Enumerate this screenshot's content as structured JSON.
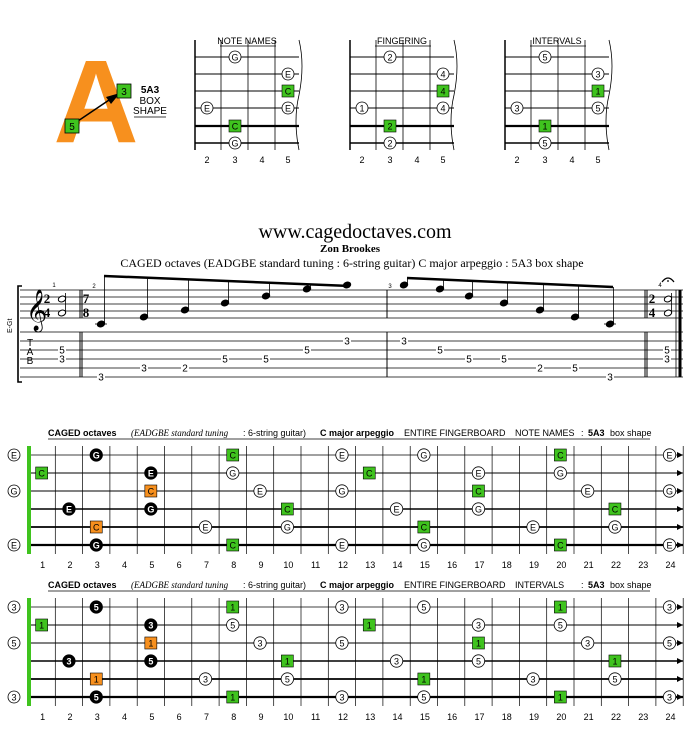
{
  "logo": {
    "letter": "A",
    "shape_lines": [
      "5A3",
      "BOX",
      "SHAPE"
    ],
    "root_label": "5",
    "third_label": "3",
    "letter_color": "#f7901e",
    "green": "#3fc31e"
  },
  "diagrams": [
    {
      "title": "NOTE NAMES",
      "labels": [
        "G",
        "E",
        "C",
        "E",
        "E",
        "C",
        "G"
      ]
    },
    {
      "title": "FINGERING",
      "labels": [
        "2",
        "4",
        "4",
        "1",
        "4",
        "2",
        "2"
      ]
    },
    {
      "title": "INTERVALS",
      "labels": [
        "5",
        "3",
        "1",
        "3",
        "5",
        "1",
        "5"
      ]
    }
  ],
  "diagram_fret_numbers": [
    "2",
    "3",
    "4",
    "5"
  ],
  "header": {
    "site": "www.cagedoctaves.com",
    "author": "Zon Brookes",
    "description": "CAGED octaves (EADGBE standard tuning : 6-string guitar) C major arpeggio : 5A3 box shape"
  },
  "score": {
    "staff_label": "E-Gt",
    "time1_top": "2",
    "time1_bottom": "4",
    "time2_top": "7",
    "time2_bottom": "8",
    "time3_top": "2",
    "time3_bottom": "4",
    "measure_numbers": [
      "1",
      "2",
      "3",
      "4"
    ],
    "tab_letters": [
      "T",
      "A",
      "B"
    ],
    "tab_m1": [
      "5",
      "3"
    ],
    "tab_m2": [
      "3",
      "3",
      "2",
      "5",
      "5",
      "5",
      "3"
    ],
    "tab_m3": [
      "3",
      "5",
      "5",
      "5",
      "2",
      "5",
      "3"
    ],
    "tab_m4": [
      "5",
      "3"
    ]
  },
  "fingerboard_notes": {
    "title_parts": [
      "CAGED octaves",
      "(EADGBE standard tuning",
      ": 6-string guitar)",
      "C major arpeggio",
      "ENTIRE FINGERBOARD",
      "NOTE NAMES",
      ":",
      "5A3",
      "box shape"
    ],
    "open_labels": [
      "E",
      "",
      "G",
      "",
      "",
      "E"
    ],
    "markers": [
      {
        "s": 1,
        "f": 3,
        "t": "G",
        "k": "black"
      },
      {
        "s": 1,
        "f": 8,
        "t": "C",
        "k": "green"
      },
      {
        "s": 1,
        "f": 12,
        "t": "E",
        "k": "white"
      },
      {
        "s": 1,
        "f": 15,
        "t": "G",
        "k": "white"
      },
      {
        "s": 1,
        "f": 20,
        "t": "C",
        "k": "green"
      },
      {
        "s": 1,
        "f": 24,
        "t": "E",
        "k": "white"
      },
      {
        "s": 2,
        "f": 1,
        "t": "C",
        "k": "green"
      },
      {
        "s": 2,
        "f": 5,
        "t": "E",
        "k": "black"
      },
      {
        "s": 2,
        "f": 8,
        "t": "G",
        "k": "white"
      },
      {
        "s": 2,
        "f": 13,
        "t": "C",
        "k": "green"
      },
      {
        "s": 2,
        "f": 17,
        "t": "E",
        "k": "white"
      },
      {
        "s": 2,
        "f": 20,
        "t": "G",
        "k": "white"
      },
      {
        "s": 3,
        "f": 5,
        "t": "C",
        "k": "orange"
      },
      {
        "s": 3,
        "f": 9,
        "t": "E",
        "k": "white"
      },
      {
        "s": 3,
        "f": 12,
        "t": "G",
        "k": "white"
      },
      {
        "s": 3,
        "f": 17,
        "t": "C",
        "k": "green"
      },
      {
        "s": 3,
        "f": 21,
        "t": "E",
        "k": "white"
      },
      {
        "s": 3,
        "f": 24,
        "t": "G",
        "k": "white"
      },
      {
        "s": 4,
        "f": 2,
        "t": "E",
        "k": "black"
      },
      {
        "s": 4,
        "f": 5,
        "t": "G",
        "k": "black"
      },
      {
        "s": 4,
        "f": 10,
        "t": "C",
        "k": "green"
      },
      {
        "s": 4,
        "f": 14,
        "t": "E",
        "k": "white"
      },
      {
        "s": 4,
        "f": 17,
        "t": "G",
        "k": "white"
      },
      {
        "s": 4,
        "f": 22,
        "t": "C",
        "k": "green"
      },
      {
        "s": 5,
        "f": 3,
        "t": "C",
        "k": "orange"
      },
      {
        "s": 5,
        "f": 7,
        "t": "E",
        "k": "white"
      },
      {
        "s": 5,
        "f": 10,
        "t": "G",
        "k": "white"
      },
      {
        "s": 5,
        "f": 15,
        "t": "C",
        "k": "green"
      },
      {
        "s": 5,
        "f": 19,
        "t": "E",
        "k": "white"
      },
      {
        "s": 5,
        "f": 22,
        "t": "G",
        "k": "white"
      },
      {
        "s": 6,
        "f": 3,
        "t": "G",
        "k": "black"
      },
      {
        "s": 6,
        "f": 8,
        "t": "C",
        "k": "green"
      },
      {
        "s": 6,
        "f": 12,
        "t": "E",
        "k": "white"
      },
      {
        "s": 6,
        "f": 15,
        "t": "G",
        "k": "white"
      },
      {
        "s": 6,
        "f": 20,
        "t": "C",
        "k": "green"
      },
      {
        "s": 6,
        "f": 24,
        "t": "E",
        "k": "white"
      }
    ]
  },
  "fingerboard_intervals": {
    "title_parts": [
      "CAGED octaves",
      "(EADGBE standard tuning",
      ": 6-string guitar)",
      "C major arpeggio",
      "ENTIRE FINGERBOARD",
      "INTERVALS",
      ":",
      "5A3",
      "box shape"
    ],
    "open_labels": [
      "3",
      "",
      "5",
      "",
      "",
      "3"
    ],
    "markers": [
      {
        "s": 1,
        "f": 3,
        "t": "5",
        "k": "black"
      },
      {
        "s": 1,
        "f": 8,
        "t": "1",
        "k": "green"
      },
      {
        "s": 1,
        "f": 12,
        "t": "3",
        "k": "white"
      },
      {
        "s": 1,
        "f": 15,
        "t": "5",
        "k": "white"
      },
      {
        "s": 1,
        "f": 20,
        "t": "1",
        "k": "green"
      },
      {
        "s": 1,
        "f": 24,
        "t": "3",
        "k": "white"
      },
      {
        "s": 2,
        "f": 1,
        "t": "1",
        "k": "green"
      },
      {
        "s": 2,
        "f": 5,
        "t": "3",
        "k": "black"
      },
      {
        "s": 2,
        "f": 8,
        "t": "5",
        "k": "white"
      },
      {
        "s": 2,
        "f": 13,
        "t": "1",
        "k": "green"
      },
      {
        "s": 2,
        "f": 17,
        "t": "3",
        "k": "white"
      },
      {
        "s": 2,
        "f": 20,
        "t": "5",
        "k": "white"
      },
      {
        "s": 3,
        "f": 5,
        "t": "1",
        "k": "orange"
      },
      {
        "s": 3,
        "f": 9,
        "t": "3",
        "k": "white"
      },
      {
        "s": 3,
        "f": 12,
        "t": "5",
        "k": "white"
      },
      {
        "s": 3,
        "f": 17,
        "t": "1",
        "k": "green"
      },
      {
        "s": 3,
        "f": 21,
        "t": "3",
        "k": "white"
      },
      {
        "s": 3,
        "f": 24,
        "t": "5",
        "k": "white"
      },
      {
        "s": 4,
        "f": 2,
        "t": "3",
        "k": "black"
      },
      {
        "s": 4,
        "f": 5,
        "t": "5",
        "k": "black"
      },
      {
        "s": 4,
        "f": 10,
        "t": "1",
        "k": "green"
      },
      {
        "s": 4,
        "f": 14,
        "t": "3",
        "k": "white"
      },
      {
        "s": 4,
        "f": 17,
        "t": "5",
        "k": "white"
      },
      {
        "s": 4,
        "f": 22,
        "t": "1",
        "k": "green"
      },
      {
        "s": 5,
        "f": 3,
        "t": "1",
        "k": "orange"
      },
      {
        "s": 5,
        "f": 7,
        "t": "3",
        "k": "white"
      },
      {
        "s": 5,
        "f": 10,
        "t": "5",
        "k": "white"
      },
      {
        "s": 5,
        "f": 15,
        "t": "1",
        "k": "green"
      },
      {
        "s": 5,
        "f": 19,
        "t": "3",
        "k": "white"
      },
      {
        "s": 5,
        "f": 22,
        "t": "5",
        "k": "white"
      },
      {
        "s": 6,
        "f": 3,
        "t": "5",
        "k": "black"
      },
      {
        "s": 6,
        "f": 8,
        "t": "1",
        "k": "green"
      },
      {
        "s": 6,
        "f": 12,
        "t": "3",
        "k": "white"
      },
      {
        "s": 6,
        "f": 15,
        "t": "5",
        "k": "white"
      },
      {
        "s": 6,
        "f": 20,
        "t": "1",
        "k": "green"
      },
      {
        "s": 6,
        "f": 24,
        "t": "3",
        "k": "white"
      }
    ]
  },
  "fret_numbers": [
    "1",
    "2",
    "3",
    "4",
    "5",
    "6",
    "7",
    "8",
    "9",
    "10",
    "11",
    "12",
    "13",
    "14",
    "15",
    "16",
    "17",
    "18",
    "19",
    "20",
    "21",
    "22",
    "23",
    "24"
  ]
}
